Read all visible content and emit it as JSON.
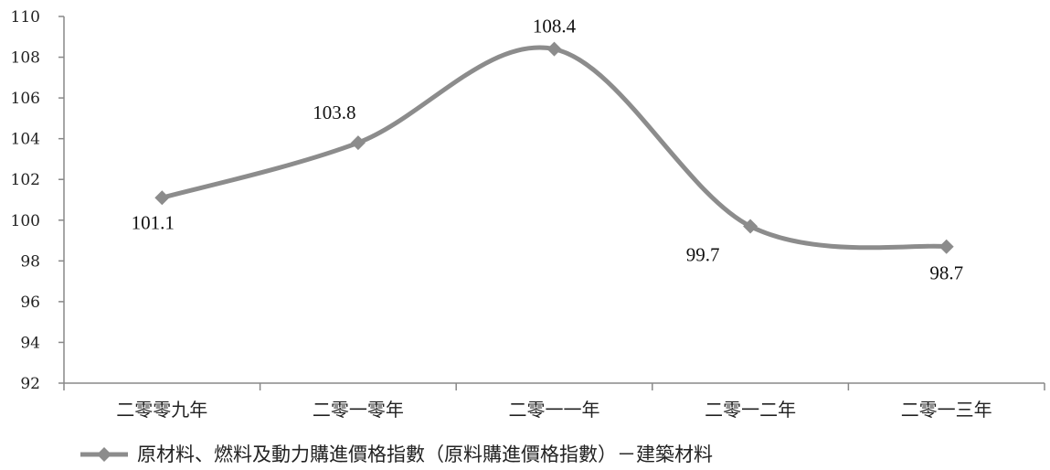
{
  "chart_data": {
    "type": "line",
    "title": "",
    "xlabel": "",
    "ylabel": "",
    "categories": [
      "二零零九年",
      "二零一零年",
      "二零一一年",
      "二零一二年",
      "二零一三年"
    ],
    "series": [
      {
        "name": "原材料、燃料及動力購進價格指數（原料購進價格指數）－建築材料",
        "values": [
          101.1,
          103.8,
          108.4,
          99.7,
          98.7
        ],
        "data_labels": [
          "101.1",
          "103.8",
          "108.4",
          "99.7",
          "98.7"
        ],
        "color": "#8c8c8c",
        "marker": "diamond",
        "smooth": true
      }
    ],
    "ylim": [
      92,
      110
    ],
    "yticks": [
      "92",
      "94",
      "96",
      "98",
      "100",
      "102",
      "104",
      "106",
      "108",
      "110"
    ],
    "grid": false,
    "legend_position": "bottom-left"
  }
}
